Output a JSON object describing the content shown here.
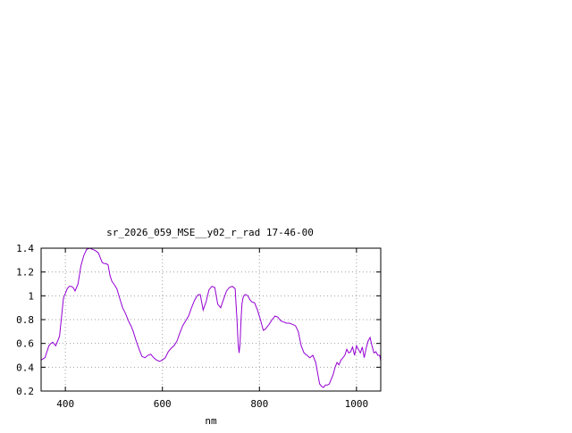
{
  "chart_data": {
    "type": "line",
    "title": "sr_2026_059_MSE__y02_r_rad 17-46-00",
    "xlabel": "nm",
    "ylabel": "",
    "xlim": [
      350,
      1050
    ],
    "ylim": [
      0.2,
      1.4
    ],
    "x_ticks": [
      {
        "value": 400,
        "label": "400"
      },
      {
        "value": 600,
        "label": "600"
      },
      {
        "value": 800,
        "label": "800"
      },
      {
        "value": 1000,
        "label": "1000"
      }
    ],
    "y_ticks": [
      {
        "value": 0.2,
        "label": "0.2"
      },
      {
        "value": 0.4,
        "label": "0.4"
      },
      {
        "value": 0.6,
        "label": "0.6"
      },
      {
        "value": 0.8,
        "label": "0.8"
      },
      {
        "value": 1.0,
        "label": "1"
      },
      {
        "value": 1.2,
        "label": "1.2"
      },
      {
        "value": 1.4,
        "label": "1.4"
      }
    ],
    "grid": true,
    "legend": "none",
    "series": [
      {
        "color": "#9400d3",
        "x": [
          350,
          358,
          366,
          370,
          374,
          380,
          384,
          388,
          392,
          396,
          400,
          404,
          408,
          412,
          416,
          420,
          426,
          432,
          438,
          444,
          450,
          456,
          462,
          468,
          472,
          476,
          480,
          484,
          488,
          492,
          496,
          500,
          506,
          512,
          518,
          524,
          530,
          536,
          540,
          546,
          552,
          558,
          564,
          570,
          576,
          582,
          588,
          594,
          600,
          606,
          612,
          618,
          624,
          630,
          636,
          642,
          648,
          654,
          660,
          666,
          670,
          674,
          678,
          684,
          690,
          696,
          702,
          708,
          714,
          720,
          726,
          732,
          738,
          744,
          750,
          754,
          756,
          758,
          760,
          762,
          764,
          766,
          768,
          770,
          772,
          776,
          780,
          784,
          790,
          796,
          802,
          808,
          812,
          816,
          820,
          826,
          832,
          838,
          844,
          850,
          856,
          862,
          868,
          874,
          880,
          886,
          892,
          898,
          904,
          910,
          916,
          920,
          924,
          928,
          932,
          936,
          940,
          944,
          948,
          952,
          956,
          960,
          964,
          968,
          972,
          976,
          980,
          984,
          988,
          992,
          996,
          1000,
          1004,
          1008,
          1012,
          1016,
          1020,
          1024,
          1028,
          1032,
          1036,
          1040,
          1044,
          1048,
          1050
        ],
        "y": [
          0.46,
          0.48,
          0.58,
          0.6,
          0.61,
          0.58,
          0.62,
          0.66,
          0.82,
          0.98,
          1.02,
          1.06,
          1.08,
          1.08,
          1.07,
          1.04,
          1.1,
          1.25,
          1.34,
          1.39,
          1.4,
          1.39,
          1.38,
          1.36,
          1.32,
          1.28,
          1.27,
          1.27,
          1.26,
          1.17,
          1.12,
          1.1,
          1.06,
          0.98,
          0.9,
          0.85,
          0.79,
          0.74,
          0.7,
          0.62,
          0.55,
          0.49,
          0.48,
          0.5,
          0.51,
          0.48,
          0.46,
          0.45,
          0.46,
          0.48,
          0.53,
          0.56,
          0.58,
          0.62,
          0.69,
          0.75,
          0.79,
          0.83,
          0.9,
          0.96,
          0.99,
          1.01,
          1.01,
          0.88,
          0.95,
          1.05,
          1.08,
          1.07,
          0.93,
          0.9,
          0.97,
          1.04,
          1.07,
          1.08,
          1.06,
          0.78,
          0.6,
          0.52,
          0.6,
          0.8,
          0.93,
          0.98,
          1.0,
          1.01,
          1.01,
          1.0,
          0.97,
          0.95,
          0.94,
          0.88,
          0.8,
          0.71,
          0.72,
          0.74,
          0.76,
          0.8,
          0.83,
          0.82,
          0.79,
          0.78,
          0.77,
          0.77,
          0.76,
          0.75,
          0.7,
          0.58,
          0.52,
          0.5,
          0.48,
          0.5,
          0.44,
          0.35,
          0.26,
          0.24,
          0.23,
          0.25,
          0.25,
          0.26,
          0.3,
          0.34,
          0.4,
          0.44,
          0.42,
          0.46,
          0.48,
          0.5,
          0.55,
          0.52,
          0.53,
          0.57,
          0.5,
          0.58,
          0.55,
          0.52,
          0.57,
          0.48,
          0.56,
          0.62,
          0.65,
          0.58,
          0.52,
          0.53,
          0.5,
          0.5,
          0.45
        ]
      }
    ]
  }
}
